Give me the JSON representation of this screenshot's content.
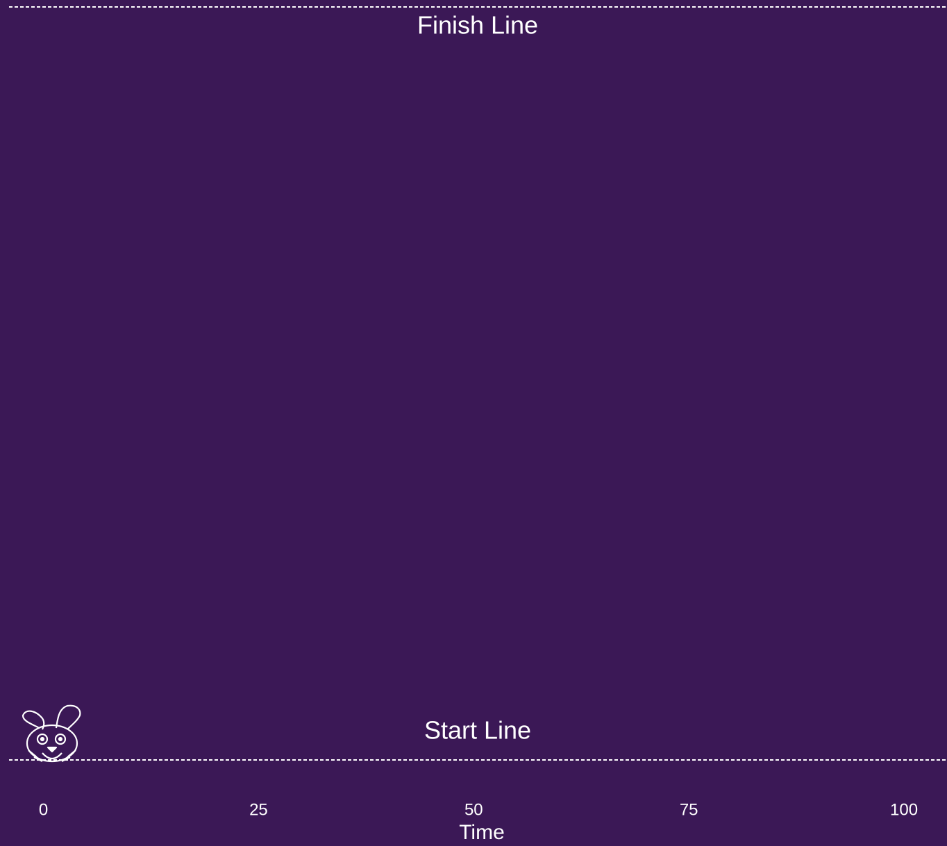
{
  "chart_data": {
    "type": "scatter",
    "x": [
      1
    ],
    "values": [
      0
    ],
    "color": "#ffffff",
    "xlabel": "Time",
    "xlim": [
      -4,
      105
    ],
    "xticks": [
      0,
      25,
      50,
      75,
      100
    ],
    "ylim": [
      0,
      100
    ],
    "hlines": [
      {
        "y": 100,
        "label": "Finish Line"
      },
      {
        "y": 0,
        "label": "Start Line"
      }
    ],
    "background": "#3b1856"
  }
}
